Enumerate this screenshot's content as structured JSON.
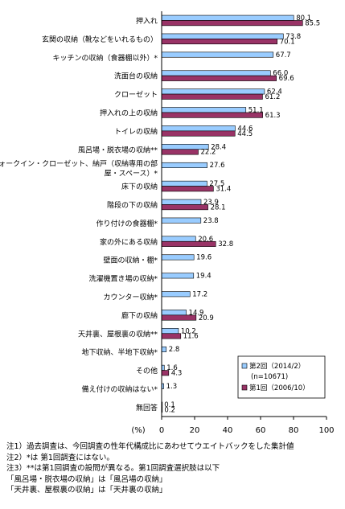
{
  "chart_data": {
    "type": "bar",
    "orientation": "horizontal",
    "categories": [
      "押入れ",
      "玄関の収納（靴などをいれるもの）",
      "キッチンの収納（食器棚以外）*",
      "洗面台の収納",
      "クローゼット",
      "押入れの上の収納",
      "トイレの収納",
      "風呂場・脱衣場の収納**",
      "ウォークイン・クローゼット、納戸（収納専用の部屋・スペース）*",
      "床下の収納",
      "階段の下の収納",
      "作り付けの食器棚*",
      "家の外にある収納",
      "壁面の収納・棚*",
      "洗濯機置き場の収納*",
      "カウンター収納*",
      "廊下の収納",
      "天井裏、屋根裏の収納**",
      "地下収納、半地下収納*",
      "その他",
      "備え付けの収納はない*",
      "無回答"
    ],
    "category_label_lines": [
      [
        "押入れ"
      ],
      [
        "玄関の収納（靴などをいれるもの）"
      ],
      [
        "キッチンの収納（食器棚以外）*"
      ],
      [
        "洗面台の収納"
      ],
      [
        "クローゼット"
      ],
      [
        "押入れの上の収納"
      ],
      [
        "トイレの収納"
      ],
      [
        "風呂場・脱衣場の収納**"
      ],
      [
        "ウォークイン・クローゼット、納戸（収納専用の部",
        "屋・スペース）*"
      ],
      [
        "床下の収納"
      ],
      [
        "階段の下の収納"
      ],
      [
        "作り付けの食器棚*"
      ],
      [
        "家の外にある収納"
      ],
      [
        "壁面の収納・棚*"
      ],
      [
        "洗濯機置き場の収納*"
      ],
      [
        "カウンター収納*"
      ],
      [
        "廊下の収納"
      ],
      [
        "天井裏、屋根裏の収納**"
      ],
      [
        "地下収納、半地下収納*"
      ],
      [
        "その他"
      ],
      [
        "備え付けの収納はない*"
      ],
      [
        "無回答"
      ]
    ],
    "series": [
      {
        "name": "第2回（2014/2）",
        "color": "#99ccff",
        "values": [
          80.1,
          73.8,
          67.7,
          66.0,
          62.4,
          51.1,
          44.6,
          28.4,
          27.6,
          27.5,
          23.9,
          23.8,
          20.6,
          19.6,
          19.4,
          17.2,
          14.9,
          10.2,
          2.8,
          1.6,
          1.3,
          0.1
        ],
        "labels": [
          "80.1",
          "73.8",
          "67.7",
          "66.0",
          "62.4",
          "51.1",
          "44.6",
          "28.4",
          "27.6",
          "27.5",
          "23.9",
          "23.8",
          "20.6",
          "19.6",
          "19.4",
          "17.2",
          "14.9",
          "10.2",
          "2.8",
          "1.6",
          "1.3",
          "0.1"
        ]
      },
      {
        "name": "第1回（2006/10）",
        "color": "#993366",
        "values": [
          85.5,
          70.1,
          null,
          69.6,
          61.2,
          61.3,
          44.5,
          22.2,
          null,
          31.4,
          28.1,
          null,
          32.8,
          null,
          null,
          null,
          20.9,
          11.6,
          null,
          4.3,
          null,
          0.2
        ],
        "labels": [
          "85.5",
          "70.1",
          null,
          "69.6",
          "61.2",
          "61.3",
          "44.5",
          "22.2",
          null,
          "31.4",
          "28.1",
          null,
          "32.8",
          null,
          null,
          null,
          "20.9",
          "11.6",
          null,
          "4.3",
          null,
          "0.2"
        ]
      }
    ],
    "legend_note": "(n=10671)",
    "xlim": [
      0,
      100
    ],
    "xticks": [
      "0",
      "20",
      "40",
      "60",
      "80",
      "100"
    ],
    "xlabel": "(%)",
    "legend_position": "bottom-right",
    "grid": false
  },
  "notes": [
    "注1）過去調査は、今回調査の性年代構成比にあわせてウエイトバックをした集計値",
    "注2）*は 第1回調査にはない。",
    "注3）**は第1回調査の設問が異なる。第1回調査選択肢は以下",
    "「風呂場・脱衣場の収納」は「風呂場の収納」",
    "「天井裏、屋根裏の収納」は「天井裏の収納」"
  ]
}
